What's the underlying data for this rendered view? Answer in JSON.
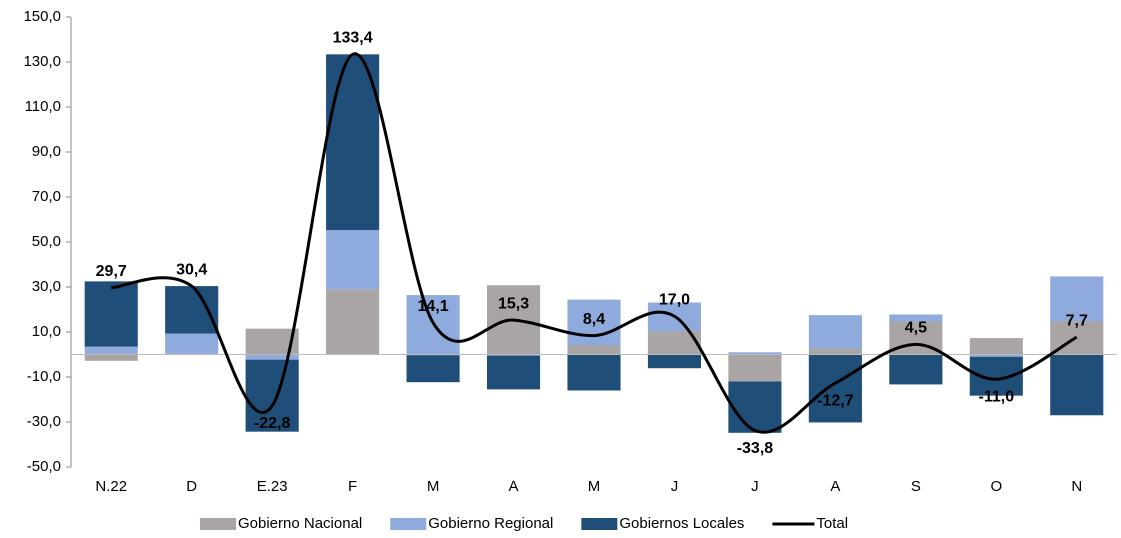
{
  "chart_data": {
    "type": "bar",
    "stacked": true,
    "categories": [
      "N.22",
      "D",
      "E.23",
      "F",
      "M",
      "A",
      "M",
      "J",
      "J",
      "A",
      "S",
      "O",
      "N"
    ],
    "series": [
      {
        "name": "Gobierno Nacional",
        "color": "#a9a5a4",
        "values": [
          -2.8,
          0.3,
          11.5,
          29.0,
          -0.3,
          30.8,
          4.0,
          10.4,
          -12.0,
          2.7,
          14.7,
          7.3,
          14.7
        ]
      },
      {
        "name": "Gobierno Regional",
        "color": "#8faadc",
        "values": [
          3.5,
          9.0,
          -2.3,
          26.3,
          26.4,
          -0.5,
          20.4,
          12.7,
          1.0,
          14.8,
          3.1,
          -1.0,
          20.0
        ]
      },
      {
        "name": "Gobiernos Locales",
        "color": "#1f4e79",
        "values": [
          29.0,
          21.1,
          -32.0,
          78.1,
          -12.0,
          -15.0,
          -16.0,
          -6.1,
          -22.8,
          -30.2,
          -13.3,
          -17.3,
          -27.0
        ]
      },
      {
        "name": "Total",
        "type": "line",
        "color": "#000000",
        "values": [
          29.7,
          30.4,
          -22.8,
          133.4,
          14.1,
          15.3,
          8.4,
          17.0,
          -33.8,
          -12.7,
          4.5,
          -11.0,
          7.7
        ],
        "value_labels": [
          "29,7",
          "30,4",
          "-22,8",
          "133,4",
          "14,1",
          "15,3",
          "8,4",
          "17,0",
          "-33,8",
          "-12,7",
          "4,5",
          "-11,0",
          "7,7"
        ]
      }
    ],
    "ylim": [
      -50,
      150
    ],
    "yticks": [
      {
        "value": -50,
        "label": "-50,0"
      },
      {
        "value": -30,
        "label": "-30,0"
      },
      {
        "value": -10,
        "label": "-10,0"
      },
      {
        "value": 10,
        "label": "10,0"
      },
      {
        "value": 30,
        "label": "30,0"
      },
      {
        "value": 50,
        "label": "50,0"
      },
      {
        "value": 70,
        "label": "70,0"
      },
      {
        "value": 90,
        "label": "90,0"
      },
      {
        "value": 110,
        "label": "110,0"
      },
      {
        "value": 130,
        "label": "130,0"
      },
      {
        "value": 150,
        "label": "150,0"
      }
    ],
    "grid": false,
    "legend": "bottom"
  }
}
